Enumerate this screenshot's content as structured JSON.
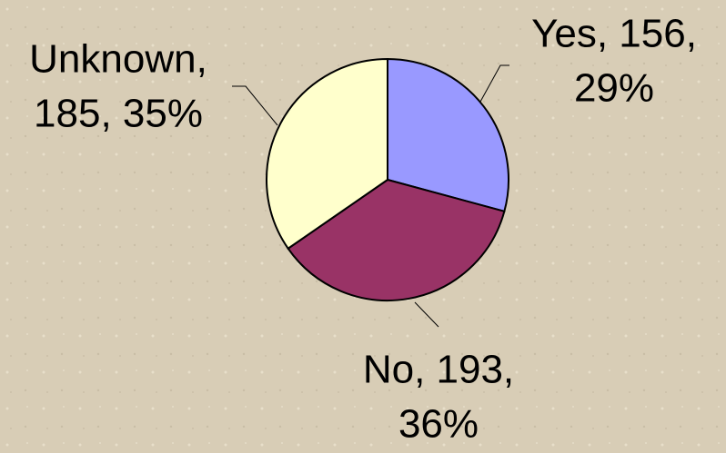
{
  "chart_data": {
    "type": "pie",
    "categories": [
      "Yes",
      "No",
      "Unknown"
    ],
    "values": [
      156,
      193,
      185
    ],
    "value_labels": [
      [
        "Yes, 156,",
        "29%"
      ],
      [
        "No, 193,",
        "36%"
      ],
      [
        "Unknown,",
        "185, 35%"
      ]
    ],
    "colors": [
      "#9999ff",
      "#993366",
      "#ffffcc"
    ]
  }
}
